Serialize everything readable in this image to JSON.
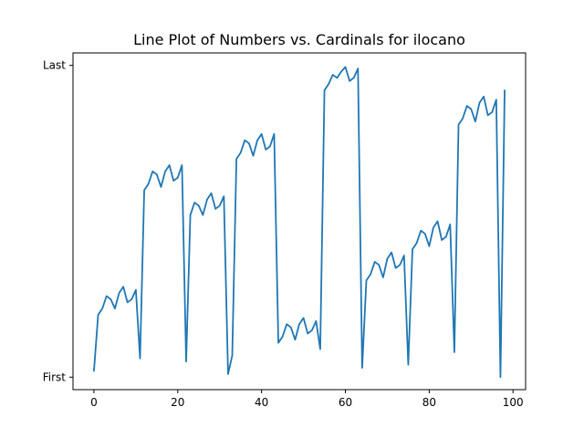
{
  "chart_data": {
    "type": "line",
    "title": "Line Plot of Numbers vs. Cardinals for ilocano",
    "xlabel": "",
    "ylabel": "",
    "xlim": [
      -5,
      103
    ],
    "ylim": [
      -0.04,
      1.04
    ],
    "grid": false,
    "legend": "none",
    "x_ticks": [
      {
        "value": 0,
        "label": "0"
      },
      {
        "value": 20,
        "label": "20"
      },
      {
        "value": 40,
        "label": "40"
      },
      {
        "value": 60,
        "label": "60"
      },
      {
        "value": 80,
        "label": "80"
      },
      {
        "value": 100,
        "label": "100"
      }
    ],
    "y_ticks": [
      {
        "value": 0,
        "label": "First"
      },
      {
        "value": 1,
        "label": "Last"
      }
    ],
    "series": [
      {
        "color": "#1f77b4",
        "x": [
          0,
          1,
          2,
          3,
          4,
          5,
          6,
          7,
          8,
          9,
          10,
          11,
          12,
          13,
          14,
          15,
          16,
          17,
          18,
          19,
          20,
          21,
          22,
          23,
          24,
          25,
          26,
          27,
          28,
          29,
          30,
          31,
          32,
          33,
          34,
          35,
          36,
          37,
          38,
          39,
          40,
          41,
          42,
          43,
          44,
          45,
          46,
          47,
          48,
          49,
          50,
          51,
          52,
          53,
          54,
          55,
          56,
          57,
          58,
          59,
          60,
          61,
          62,
          63,
          64,
          65,
          66,
          67,
          68,
          69,
          70,
          71,
          72,
          73,
          74,
          75,
          76,
          77,
          78,
          79,
          80,
          81,
          82,
          83,
          84,
          85,
          86,
          87,
          88,
          89,
          90,
          91,
          92,
          93,
          94,
          95,
          96,
          97,
          98
        ],
        "values": [
          0.02,
          0.2,
          0.22,
          0.26,
          0.25,
          0.22,
          0.27,
          0.29,
          0.24,
          0.25,
          0.28,
          0.06,
          0.6,
          0.62,
          0.66,
          0.65,
          0.61,
          0.66,
          0.68,
          0.63,
          0.64,
          0.68,
          0.05,
          0.52,
          0.56,
          0.55,
          0.52,
          0.57,
          0.59,
          0.54,
          0.55,
          0.58,
          0.01,
          0.07,
          0.7,
          0.72,
          0.76,
          0.75,
          0.71,
          0.76,
          0.78,
          0.73,
          0.74,
          0.78,
          0.11,
          0.13,
          0.17,
          0.16,
          0.12,
          0.17,
          0.19,
          0.14,
          0.15,
          0.18,
          0.09,
          0.92,
          0.94,
          0.97,
          0.96,
          0.98,
          0.995,
          0.95,
          0.96,
          0.99,
          0.03,
          0.31,
          0.33,
          0.37,
          0.36,
          0.32,
          0.38,
          0.4,
          0.35,
          0.36,
          0.39,
          0.04,
          0.41,
          0.43,
          0.47,
          0.46,
          0.42,
          0.48,
          0.5,
          0.44,
          0.45,
          0.49,
          0.08,
          0.81,
          0.83,
          0.87,
          0.86,
          0.82,
          0.88,
          0.9,
          0.84,
          0.85,
          0.89,
          0.0,
          0.92
        ]
      }
    ]
  }
}
